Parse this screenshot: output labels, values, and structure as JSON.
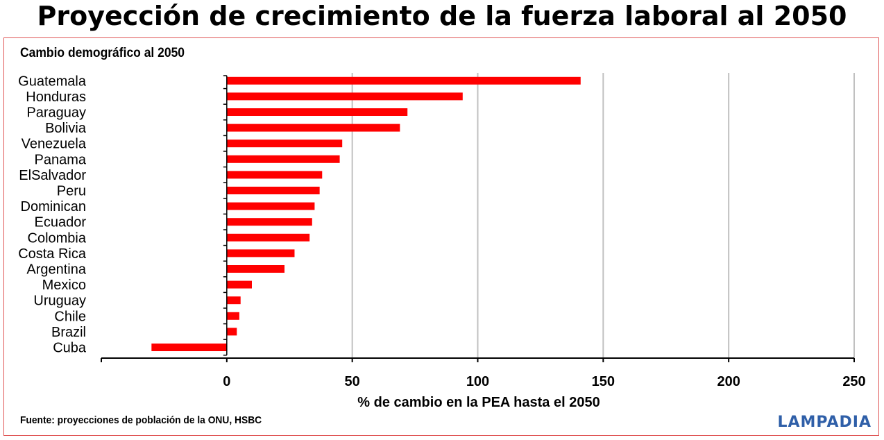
{
  "header": {
    "title": "Proyección de crecimiento de la fuerza laboral al 2050"
  },
  "footer": {
    "source": "Fuente: proyecciones de población de la ONU, HSBC",
    "logo_text": "LAMPADIA"
  },
  "colors": {
    "bar": "#ff0000",
    "grid": "#c0c0c0",
    "frame": "#e05555",
    "logo": "#2f5fa8"
  },
  "chart_data": {
    "type": "bar",
    "orientation": "horizontal",
    "title": "Cambio demográfico al 2050",
    "xlabel": "% de cambio en la PEA hasta el 2050",
    "ylabel": "",
    "xlim": [
      -50,
      250
    ],
    "xticks": [
      0,
      50,
      100,
      150,
      200,
      250
    ],
    "grid": true,
    "categories": [
      "Guatemala",
      "Honduras",
      "Paraguay",
      "Bolivia",
      "Venezuela",
      "Panama",
      "ElSalvador",
      "Peru",
      "Dominican",
      "Ecuador",
      "Colombia",
      "Costa Rica",
      "Argentina",
      "Mexico",
      "Uruguay",
      "Chile",
      "Brazil",
      "Cuba"
    ],
    "values": [
      141,
      94,
      72,
      69,
      46,
      45,
      38,
      37,
      35,
      34,
      33,
      27,
      23,
      10,
      5.5,
      5,
      4,
      -30
    ]
  }
}
